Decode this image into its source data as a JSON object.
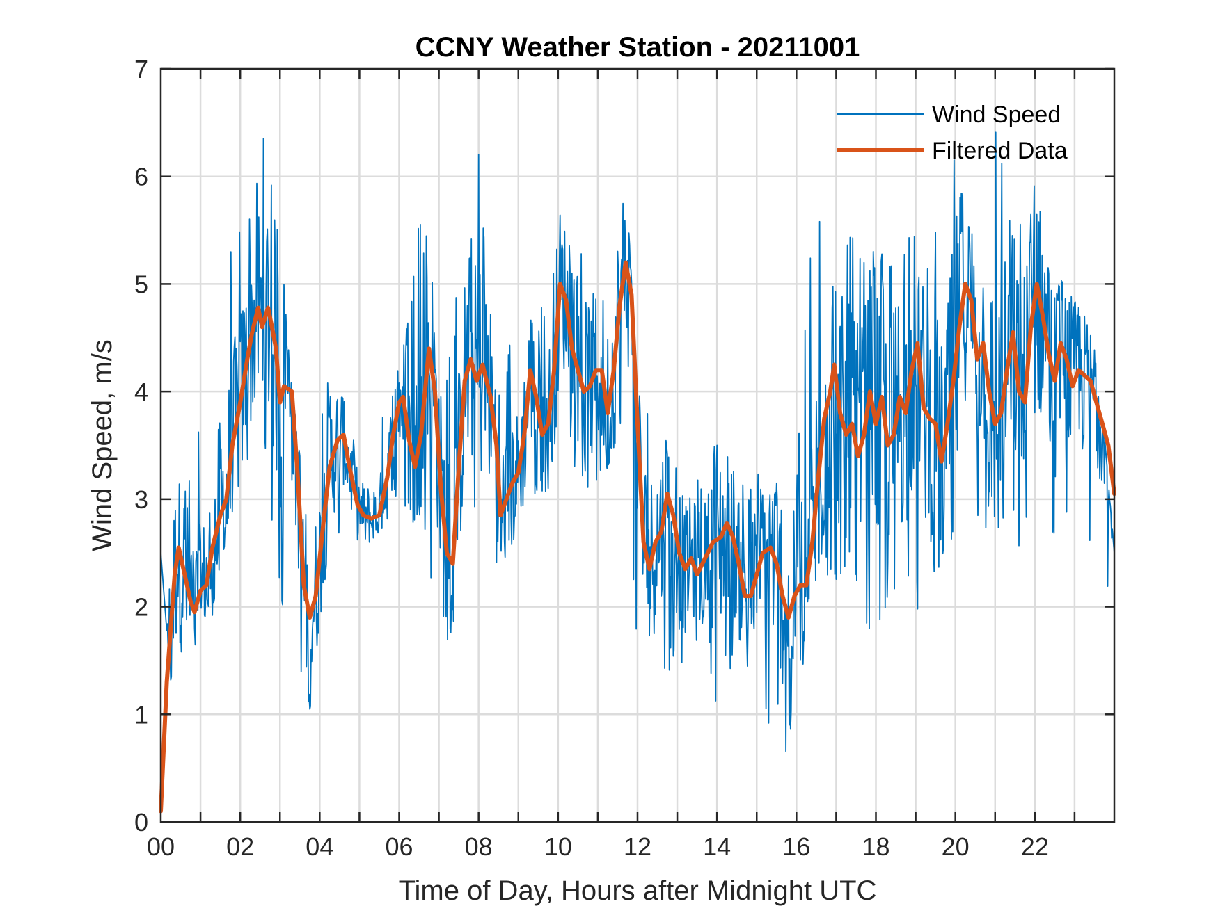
{
  "chart_data": {
    "type": "line",
    "title": "CCNY Weather Station - 20211001",
    "xlabel": "Time of Day, Hours after Midnight UTC",
    "ylabel": "Wind Speed, m/s",
    "xlim": [
      0,
      24
    ],
    "ylim": [
      0,
      7
    ],
    "xticks": [
      0,
      2,
      4,
      6,
      8,
      10,
      12,
      14,
      16,
      18,
      20,
      22
    ],
    "xtick_labels": [
      "00",
      "02",
      "04",
      "06",
      "08",
      "10",
      "12",
      "14",
      "16",
      "18",
      "20",
      "22"
    ],
    "yticks": [
      0,
      1,
      2,
      3,
      4,
      5,
      6,
      7
    ],
    "ytick_labels": [
      "0",
      "1",
      "2",
      "3",
      "4",
      "5",
      "6",
      "7"
    ],
    "grid": true,
    "legend_position": "top-right",
    "colors": {
      "wind_speed": "#0072BD",
      "filtered": "#D95319",
      "axis": "#262626",
      "grid": "#dcdcdc"
    },
    "series": [
      {
        "name": "Wind Speed",
        "style": "thin",
        "description": "noisy raw measurements; envelope min/max per interval",
        "x": [
          0.0,
          0.25,
          0.5,
          0.75,
          1.0,
          1.25,
          1.5,
          1.75,
          2.0,
          2.25,
          2.5,
          2.75,
          3.0,
          3.25,
          3.5,
          3.75,
          4.0,
          4.25,
          4.5,
          4.75,
          5.0,
          5.25,
          5.5,
          5.75,
          6.0,
          6.25,
          6.5,
          6.75,
          7.0,
          7.25,
          7.5,
          7.75,
          8.0,
          8.25,
          8.5,
          8.75,
          9.0,
          9.25,
          9.5,
          9.75,
          10.0,
          10.25,
          10.5,
          10.75,
          11.0,
          11.25,
          11.5,
          11.75,
          12.0,
          12.25,
          12.5,
          12.75,
          13.0,
          13.25,
          13.5,
          13.75,
          14.0,
          14.25,
          14.5,
          14.75,
          15.0,
          15.25,
          15.5,
          15.75,
          16.0,
          16.25,
          16.5,
          16.75,
          17.0,
          17.25,
          17.5,
          17.75,
          18.0,
          18.25,
          18.5,
          18.75,
          19.0,
          19.25,
          19.5,
          19.75,
          20.0,
          20.25,
          20.5,
          20.75,
          21.0,
          21.25,
          21.5,
          21.75,
          22.0,
          22.25,
          22.5,
          22.75,
          23.0,
          23.25,
          23.5,
          23.75,
          24.0
        ],
        "max": [
          4.2,
          3.4,
          3.1,
          3.4,
          3.8,
          3.9,
          5.1,
          5.4,
          5.7,
          5.7,
          6.5,
          6.2,
          5.6,
          4.2,
          3.4,
          3.3,
          3.8,
          4.2,
          4.0,
          3.8,
          3.4,
          3.5,
          3.7,
          4.0,
          4.3,
          4.8,
          5.6,
          5.4,
          4.5,
          4.3,
          5.1,
          5.4,
          6.4,
          4.9,
          4.2,
          4.5,
          4.3,
          4.9,
          4.7,
          5.0,
          5.7,
          5.4,
          5.2,
          5.6,
          5.0,
          5.8,
          6.2,
          5.7,
          4.0,
          3.8,
          3.7,
          3.6,
          3.5,
          3.2,
          3.4,
          3.2,
          3.8,
          3.4,
          3.3,
          3.1,
          3.3,
          3.0,
          3.3,
          3.0,
          3.3,
          5.0,
          5.7,
          5.9,
          5.4,
          5.5,
          5.6,
          5.1,
          5.4,
          5.3,
          5.5,
          5.4,
          5.5,
          5.3,
          5.7,
          5.5,
          6.5,
          5.6,
          5.4,
          5.2,
          6.7,
          6.0,
          5.7,
          5.5,
          6.1,
          5.3,
          5.1,
          5.0,
          4.9,
          4.7,
          4.4,
          3.6,
          2.5
        ],
        "min": [
          2.5,
          1.3,
          0.6,
          1.2,
          2.0,
          1.8,
          2.4,
          2.8,
          3.2,
          3.4,
          3.5,
          2.9,
          2.2,
          1.2,
          1.3,
          0.8,
          1.9,
          2.3,
          2.5,
          2.6,
          2.5,
          2.6,
          2.7,
          2.8,
          2.9,
          2.7,
          2.9,
          2.2,
          1.9,
          1.4,
          2.4,
          2.5,
          3.2,
          2.3,
          2.3,
          2.5,
          2.6,
          2.9,
          3.0,
          3.1,
          3.3,
          3.5,
          3.2,
          3.1,
          3.0,
          3.3,
          3.6,
          3.2,
          1.4,
          1.3,
          1.5,
          1.4,
          1.3,
          1.6,
          1.5,
          1.7,
          0.9,
          1.4,
          1.2,
          1.3,
          1.2,
          0.8,
          0.9,
          0.6,
          1.0,
          1.7,
          2.2,
          2.3,
          2.0,
          2.2,
          2.1,
          1.8,
          1.5,
          1.8,
          2.0,
          2.1,
          1.9,
          2.2,
          2.3,
          2.4,
          2.6,
          2.5,
          2.6,
          2.7,
          2.8,
          2.6,
          2.7,
          1.9,
          2.4,
          2.5,
          2.4,
          2.6,
          2.7,
          2.5,
          2.3,
          2.2,
          1.5
        ]
      },
      {
        "name": "Filtered Data",
        "style": "thick",
        "x": [
          0.0,
          0.15,
          0.35,
          0.45,
          0.6,
          0.75,
          0.85,
          1.0,
          1.15,
          1.3,
          1.5,
          1.65,
          1.8,
          2.0,
          2.2,
          2.3,
          2.45,
          2.55,
          2.7,
          2.8,
          2.9,
          3.0,
          3.1,
          3.3,
          3.45,
          3.6,
          3.75,
          3.9,
          4.1,
          4.25,
          4.45,
          4.6,
          4.75,
          4.95,
          5.1,
          5.3,
          5.5,
          5.7,
          5.85,
          6.0,
          6.1,
          6.25,
          6.4,
          6.55,
          6.75,
          6.9,
          7.05,
          7.2,
          7.35,
          7.5,
          7.65,
          7.8,
          7.95,
          8.1,
          8.3,
          8.45,
          8.55,
          8.7,
          8.85,
          9.0,
          9.15,
          9.3,
          9.45,
          9.6,
          9.75,
          9.9,
          10.05,
          10.2,
          10.35,
          10.5,
          10.65,
          10.8,
          10.95,
          11.1,
          11.25,
          11.4,
          11.55,
          11.7,
          11.85,
          12.0,
          12.15,
          12.3,
          12.45,
          12.6,
          12.75,
          12.9,
          13.05,
          13.2,
          13.35,
          13.5,
          13.7,
          13.9,
          14.1,
          14.25,
          14.4,
          14.55,
          14.7,
          14.85,
          15.0,
          15.15,
          15.35,
          15.5,
          15.65,
          15.8,
          15.95,
          16.1,
          16.25,
          16.4,
          16.55,
          16.7,
          16.85,
          16.95,
          17.1,
          17.25,
          17.4,
          17.55,
          17.7,
          17.85,
          18.0,
          18.15,
          18.3,
          18.45,
          18.6,
          18.75,
          18.9,
          19.05,
          19.2,
          19.35,
          19.5,
          19.65,
          19.8,
          19.95,
          20.1,
          20.25,
          20.4,
          20.55,
          20.7,
          20.85,
          21.0,
          21.15,
          21.3,
          21.45,
          21.6,
          21.75,
          21.9,
          22.05,
          22.2,
          22.35,
          22.5,
          22.65,
          22.8,
          22.95,
          23.1,
          23.25,
          23.4,
          23.55,
          23.7,
          23.85,
          24.0
        ],
        "y": [
          0.1,
          1.3,
          2.3,
          2.55,
          2.3,
          2.05,
          1.95,
          2.15,
          2.2,
          2.55,
          2.85,
          3.0,
          3.5,
          3.9,
          4.35,
          4.55,
          4.78,
          4.6,
          4.78,
          4.6,
          4.4,
          3.9,
          4.05,
          4.0,
          3.2,
          2.2,
          1.9,
          2.1,
          2.8,
          3.3,
          3.55,
          3.6,
          3.3,
          2.95,
          2.85,
          2.82,
          2.85,
          3.2,
          3.6,
          3.9,
          3.95,
          3.55,
          3.3,
          3.6,
          4.4,
          4.0,
          3.1,
          2.5,
          2.4,
          3.3,
          4.1,
          4.3,
          4.1,
          4.25,
          3.95,
          3.5,
          2.85,
          3.0,
          3.15,
          3.25,
          3.6,
          4.2,
          3.95,
          3.6,
          3.7,
          4.2,
          5.0,
          4.85,
          4.4,
          4.2,
          4.0,
          4.05,
          4.2,
          4.2,
          3.8,
          4.2,
          4.8,
          5.2,
          4.9,
          3.7,
          2.6,
          2.35,
          2.6,
          2.7,
          3.05,
          2.85,
          2.5,
          2.35,
          2.45,
          2.3,
          2.45,
          2.6,
          2.65,
          2.78,
          2.65,
          2.4,
          2.1,
          2.1,
          2.3,
          2.5,
          2.55,
          2.4,
          2.1,
          1.9,
          2.1,
          2.2,
          2.2,
          2.6,
          3.2,
          3.75,
          4.0,
          4.25,
          3.8,
          3.6,
          3.7,
          3.4,
          3.6,
          4.0,
          3.7,
          3.95,
          3.5,
          3.6,
          3.95,
          3.8,
          4.2,
          4.45,
          3.85,
          3.75,
          3.7,
          3.35,
          3.7,
          4.1,
          4.6,
          5.0,
          4.85,
          4.3,
          4.45,
          4.0,
          3.7,
          3.8,
          4.2,
          4.55,
          4.0,
          3.9,
          4.6,
          5.0,
          4.7,
          4.35,
          4.1,
          4.45,
          4.3,
          4.05,
          4.2,
          4.15,
          4.1,
          3.9,
          3.7,
          3.5,
          3.05
        ]
      }
    ]
  }
}
